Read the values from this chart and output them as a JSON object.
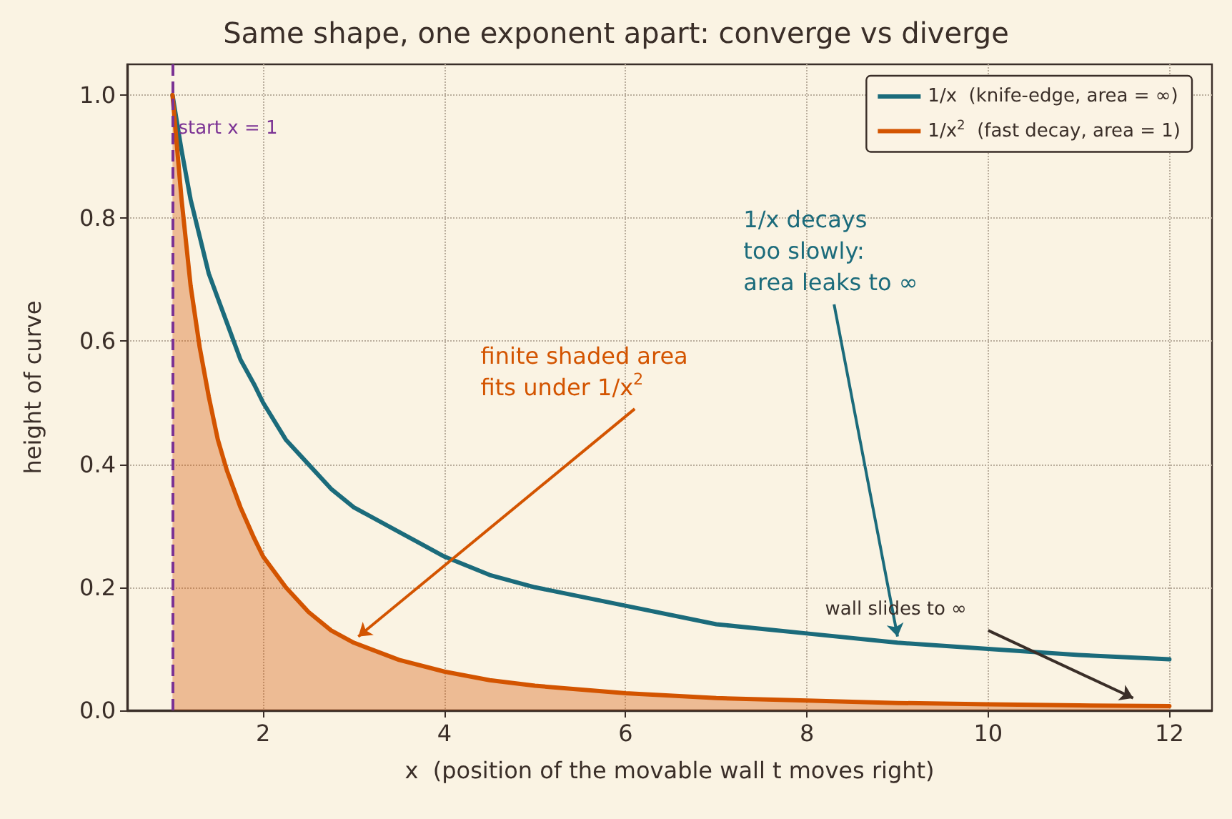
{
  "chart_data": {
    "type": "line",
    "title": "Same shape, one exponent apart: converge vs diverge",
    "xlabel": "x  (position of the movable wall t moves right)",
    "ylabel": "height of curve",
    "x": [
      1,
      1.1,
      1.2,
      1.3,
      1.4,
      1.5,
      1.6,
      1.75,
      1.9,
      2,
      2.25,
      2.5,
      2.75,
      3,
      3.5,
      4,
      4.5,
      5,
      6,
      7,
      8,
      9,
      10,
      11,
      12
    ],
    "series": [
      {
        "name": "1/x  (knife-edge, area = ∞)",
        "color": "#1b6b7b",
        "values": [
          1,
          0.91,
          0.83,
          0.77,
          0.71,
          0.67,
          0.63,
          0.57,
          0.53,
          0.5,
          0.44,
          0.4,
          0.36,
          0.33,
          0.29,
          0.25,
          0.22,
          0.2,
          0.17,
          0.14,
          0.125,
          0.11,
          0.1,
          0.09,
          0.083
        ]
      },
      {
        "name": "1/x$^{2}$  (fast decay, area = 1)",
        "color": "#d35400",
        "type": "area",
        "values": [
          1,
          0.83,
          0.69,
          0.59,
          0.51,
          0.44,
          0.39,
          0.33,
          0.28,
          0.25,
          0.2,
          0.16,
          0.13,
          0.11,
          0.082,
          0.063,
          0.049,
          0.04,
          0.028,
          0.02,
          0.016,
          0.012,
          0.01,
          0.008,
          0.007
        ]
      }
    ],
    "xlim": [
      0.5,
      12.47
    ],
    "ylim": [
      0,
      1.05
    ],
    "xticks": [
      2,
      4,
      6,
      8,
      10,
      12
    ],
    "yticks": [
      {
        "value": 0,
        "label": "0.0"
      },
      {
        "value": 0.2,
        "label": "0.2"
      },
      {
        "value": 0.4,
        "label": "0.4"
      },
      {
        "value": 0.6,
        "label": "0.6"
      },
      {
        "value": 0.8,
        "label": "0.8"
      },
      {
        "value": 1,
        "label": "1.0"
      }
    ],
    "ref_lines": [
      {
        "axis": "x",
        "value": 1,
        "label": "start x = 1",
        "color": "#7b3294",
        "line_style": "dashed"
      }
    ],
    "annotations": [
      {
        "text": "finite shaded area\nfits under 1/x$^{2}$",
        "x": 3.05,
        "y": 0.12
      },
      {
        "text": "1/x decays\ntoo slowly:\narea leaks to ∞",
        "x": 9,
        "y": 0.12
      },
      {
        "text": "wall slides to ∞",
        "x": 11.6,
        "y": 0.02
      }
    ],
    "grid": true,
    "legend": "top right",
    "line_style": "solid",
    "marker": "none"
  }
}
